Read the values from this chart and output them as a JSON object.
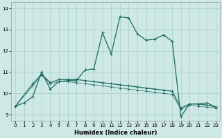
{
  "xlabel": "Humidex (Indice chaleur)",
  "bg_color": "#cde8e5",
  "grid_color": "#aacfcc",
  "line_color": "#1a6b5e",
  "xlim": [
    -0.5,
    23.5
  ],
  "ylim": [
    8.7,
    14.3
  ],
  "yticks": [
    9,
    10,
    11,
    12,
    13,
    14
  ],
  "xticks": [
    0,
    1,
    2,
    3,
    4,
    5,
    6,
    7,
    8,
    9,
    10,
    11,
    12,
    13,
    14,
    15,
    16,
    17,
    18,
    19,
    20,
    21,
    22,
    23
  ],
  "curve_main_x": [
    0,
    1,
    2,
    3,
    4,
    5,
    6,
    7,
    8,
    9,
    10,
    11,
    12,
    13,
    14,
    15,
    16,
    17,
    18,
    19,
    20,
    21,
    22,
    23
  ],
  "curve_main_y": [
    9.4,
    9.55,
    9.85,
    11.0,
    10.2,
    10.55,
    10.6,
    10.6,
    11.1,
    11.15,
    12.85,
    11.85,
    13.6,
    13.55,
    12.8,
    12.5,
    12.55,
    12.75,
    12.45,
    8.9,
    9.5,
    9.5,
    9.55,
    9.35
  ],
  "curve_flat_x": [
    0,
    2,
    3,
    4,
    5,
    6,
    7,
    8,
    9,
    10,
    11,
    12,
    13,
    14,
    15,
    16,
    17,
    18,
    19,
    20,
    21,
    22,
    23
  ],
  "curve_flat_y": [
    9.4,
    10.45,
    10.9,
    10.5,
    10.65,
    10.65,
    10.65,
    10.6,
    10.55,
    10.5,
    10.45,
    10.4,
    10.35,
    10.3,
    10.25,
    10.2,
    10.15,
    10.1,
    9.3,
    9.5,
    9.5,
    9.45,
    9.35
  ],
  "curve_reg_x": [
    0,
    2,
    3,
    4,
    5,
    6,
    7,
    8,
    9,
    10,
    11,
    12,
    13,
    14,
    15,
    16,
    17,
    18,
    19,
    20,
    21,
    22,
    23
  ],
  "curve_reg_y": [
    9.4,
    10.35,
    10.85,
    10.45,
    10.55,
    10.55,
    10.5,
    10.45,
    10.4,
    10.35,
    10.3,
    10.25,
    10.2,
    10.15,
    10.1,
    10.05,
    10.0,
    9.95,
    9.25,
    9.45,
    9.4,
    9.35,
    9.3
  ]
}
